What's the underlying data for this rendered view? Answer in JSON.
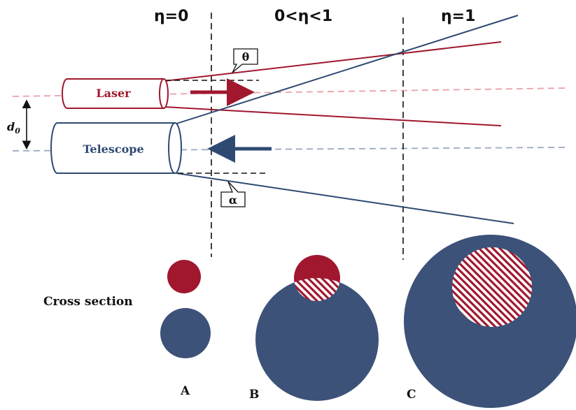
{
  "regions": {
    "near": "η=0",
    "middle": "0<η<1",
    "far": "η=1"
  },
  "devices": {
    "laser": "Laser",
    "telescope": "Telescope"
  },
  "angles": {
    "theta": "θ",
    "alpha": "α"
  },
  "offset_label": "d",
  "offset_subscript": "0",
  "cross_section_label": "Cross section",
  "cases": [
    "A",
    "B",
    "C"
  ],
  "colors": {
    "laser": "#a0172e",
    "telescope": "#2e4a73",
    "telescope_fill": "#3d5279",
    "laser_axis": "#e8a0a8",
    "telescope_axis": "#9aa8c2"
  }
}
